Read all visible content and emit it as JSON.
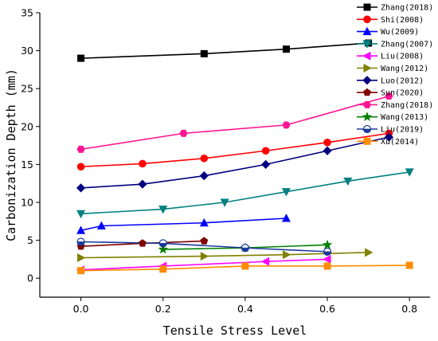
{
  "chart_data": {
    "type": "line",
    "xlabel": "Tensile Stress Level",
    "ylabel": "Carbonization Depth (mm)",
    "xlim": [
      -0.1,
      0.85
    ],
    "ylim": [
      -2.5,
      35
    ],
    "xticks": [
      0.0,
      0.2,
      0.4,
      0.6,
      0.8
    ],
    "xtick_labels": [
      "0.0",
      "0.2",
      "0.4",
      "0.6",
      "0.8"
    ],
    "yticks": [
      0,
      5,
      10,
      15,
      20,
      25,
      30,
      35
    ],
    "ytick_labels": [
      "0",
      "5",
      "10",
      "15",
      "20",
      "25",
      "30",
      "35"
    ],
    "grid": false,
    "legend_position": "top-right",
    "series": [
      {
        "name": "Zhang(2018)",
        "color": "#000000",
        "marker": "square",
        "x": [
          0.0,
          0.3,
          0.5,
          0.7
        ],
        "y": [
          29.0,
          29.6,
          30.2,
          31.0
        ]
      },
      {
        "name": "Shi(2008)",
        "color": "#ff0000",
        "marker": "circle",
        "x": [
          0.0,
          0.15,
          0.3,
          0.45,
          0.6,
          0.75
        ],
        "y": [
          14.7,
          15.1,
          15.8,
          16.8,
          17.9,
          19.1
        ]
      },
      {
        "name": "Wu(2009)",
        "color": "#0000ff",
        "marker": "triangle-up",
        "x": [
          0.0,
          0.05,
          0.3,
          0.5
        ],
        "y": [
          6.3,
          6.9,
          7.3,
          7.9
        ]
      },
      {
        "name": "Zhang(2007)",
        "color": "#008080",
        "marker": "triangle-down",
        "x": [
          0.0,
          0.2,
          0.35,
          0.5,
          0.65,
          0.8
        ],
        "y": [
          8.5,
          9.1,
          10.0,
          11.4,
          12.8,
          14.0
        ]
      },
      {
        "name": "Liu(2008)",
        "color": "#ff00ff",
        "marker": "triangle-left",
        "x": [
          0.0,
          0.2,
          0.45,
          0.6
        ],
        "y": [
          1.1,
          1.6,
          2.2,
          2.5
        ]
      },
      {
        "name": "Wang(2012)",
        "color": "#808000",
        "marker": "triangle-right",
        "x": [
          0.0,
          0.3,
          0.5,
          0.7
        ],
        "y": [
          2.7,
          2.9,
          3.1,
          3.4
        ]
      },
      {
        "name": "Luo(2012)",
        "color": "#000080",
        "marker": "diamond",
        "x": [
          0.0,
          0.15,
          0.3,
          0.45,
          0.6,
          0.75
        ],
        "y": [
          11.9,
          12.4,
          13.5,
          15.0,
          16.8,
          18.6
        ]
      },
      {
        "name": "Sun(2020)",
        "color": "#800000",
        "marker": "pentagon",
        "x": [
          0.0,
          0.15,
          0.3
        ],
        "y": [
          4.2,
          4.6,
          4.9
        ]
      },
      {
        "name": "Zhang(2018)",
        "color": "#ff1493",
        "marker": "hexagon",
        "x": [
          0.0,
          0.25,
          0.5,
          0.75
        ],
        "y": [
          17.0,
          19.1,
          20.2,
          24.0
        ]
      },
      {
        "name": "Wang(2013)",
        "color": "#008000",
        "marker": "star",
        "x": [
          0.2,
          0.4,
          0.6
        ],
        "y": [
          3.8,
          4.0,
          4.4
        ]
      },
      {
        "name": "Liu(2019)",
        "color": "#1a3a99",
        "marker": "half-circle",
        "x": [
          0.0,
          0.2,
          0.4,
          0.6
        ],
        "y": [
          4.8,
          4.6,
          4.0,
          3.5
        ]
      },
      {
        "name": "Xu(2014)",
        "color": "#ff8c00",
        "marker": "square",
        "x": [
          0.0,
          0.2,
          0.4,
          0.6,
          0.8
        ],
        "y": [
          1.0,
          1.2,
          1.6,
          1.6,
          1.7
        ]
      }
    ]
  }
}
